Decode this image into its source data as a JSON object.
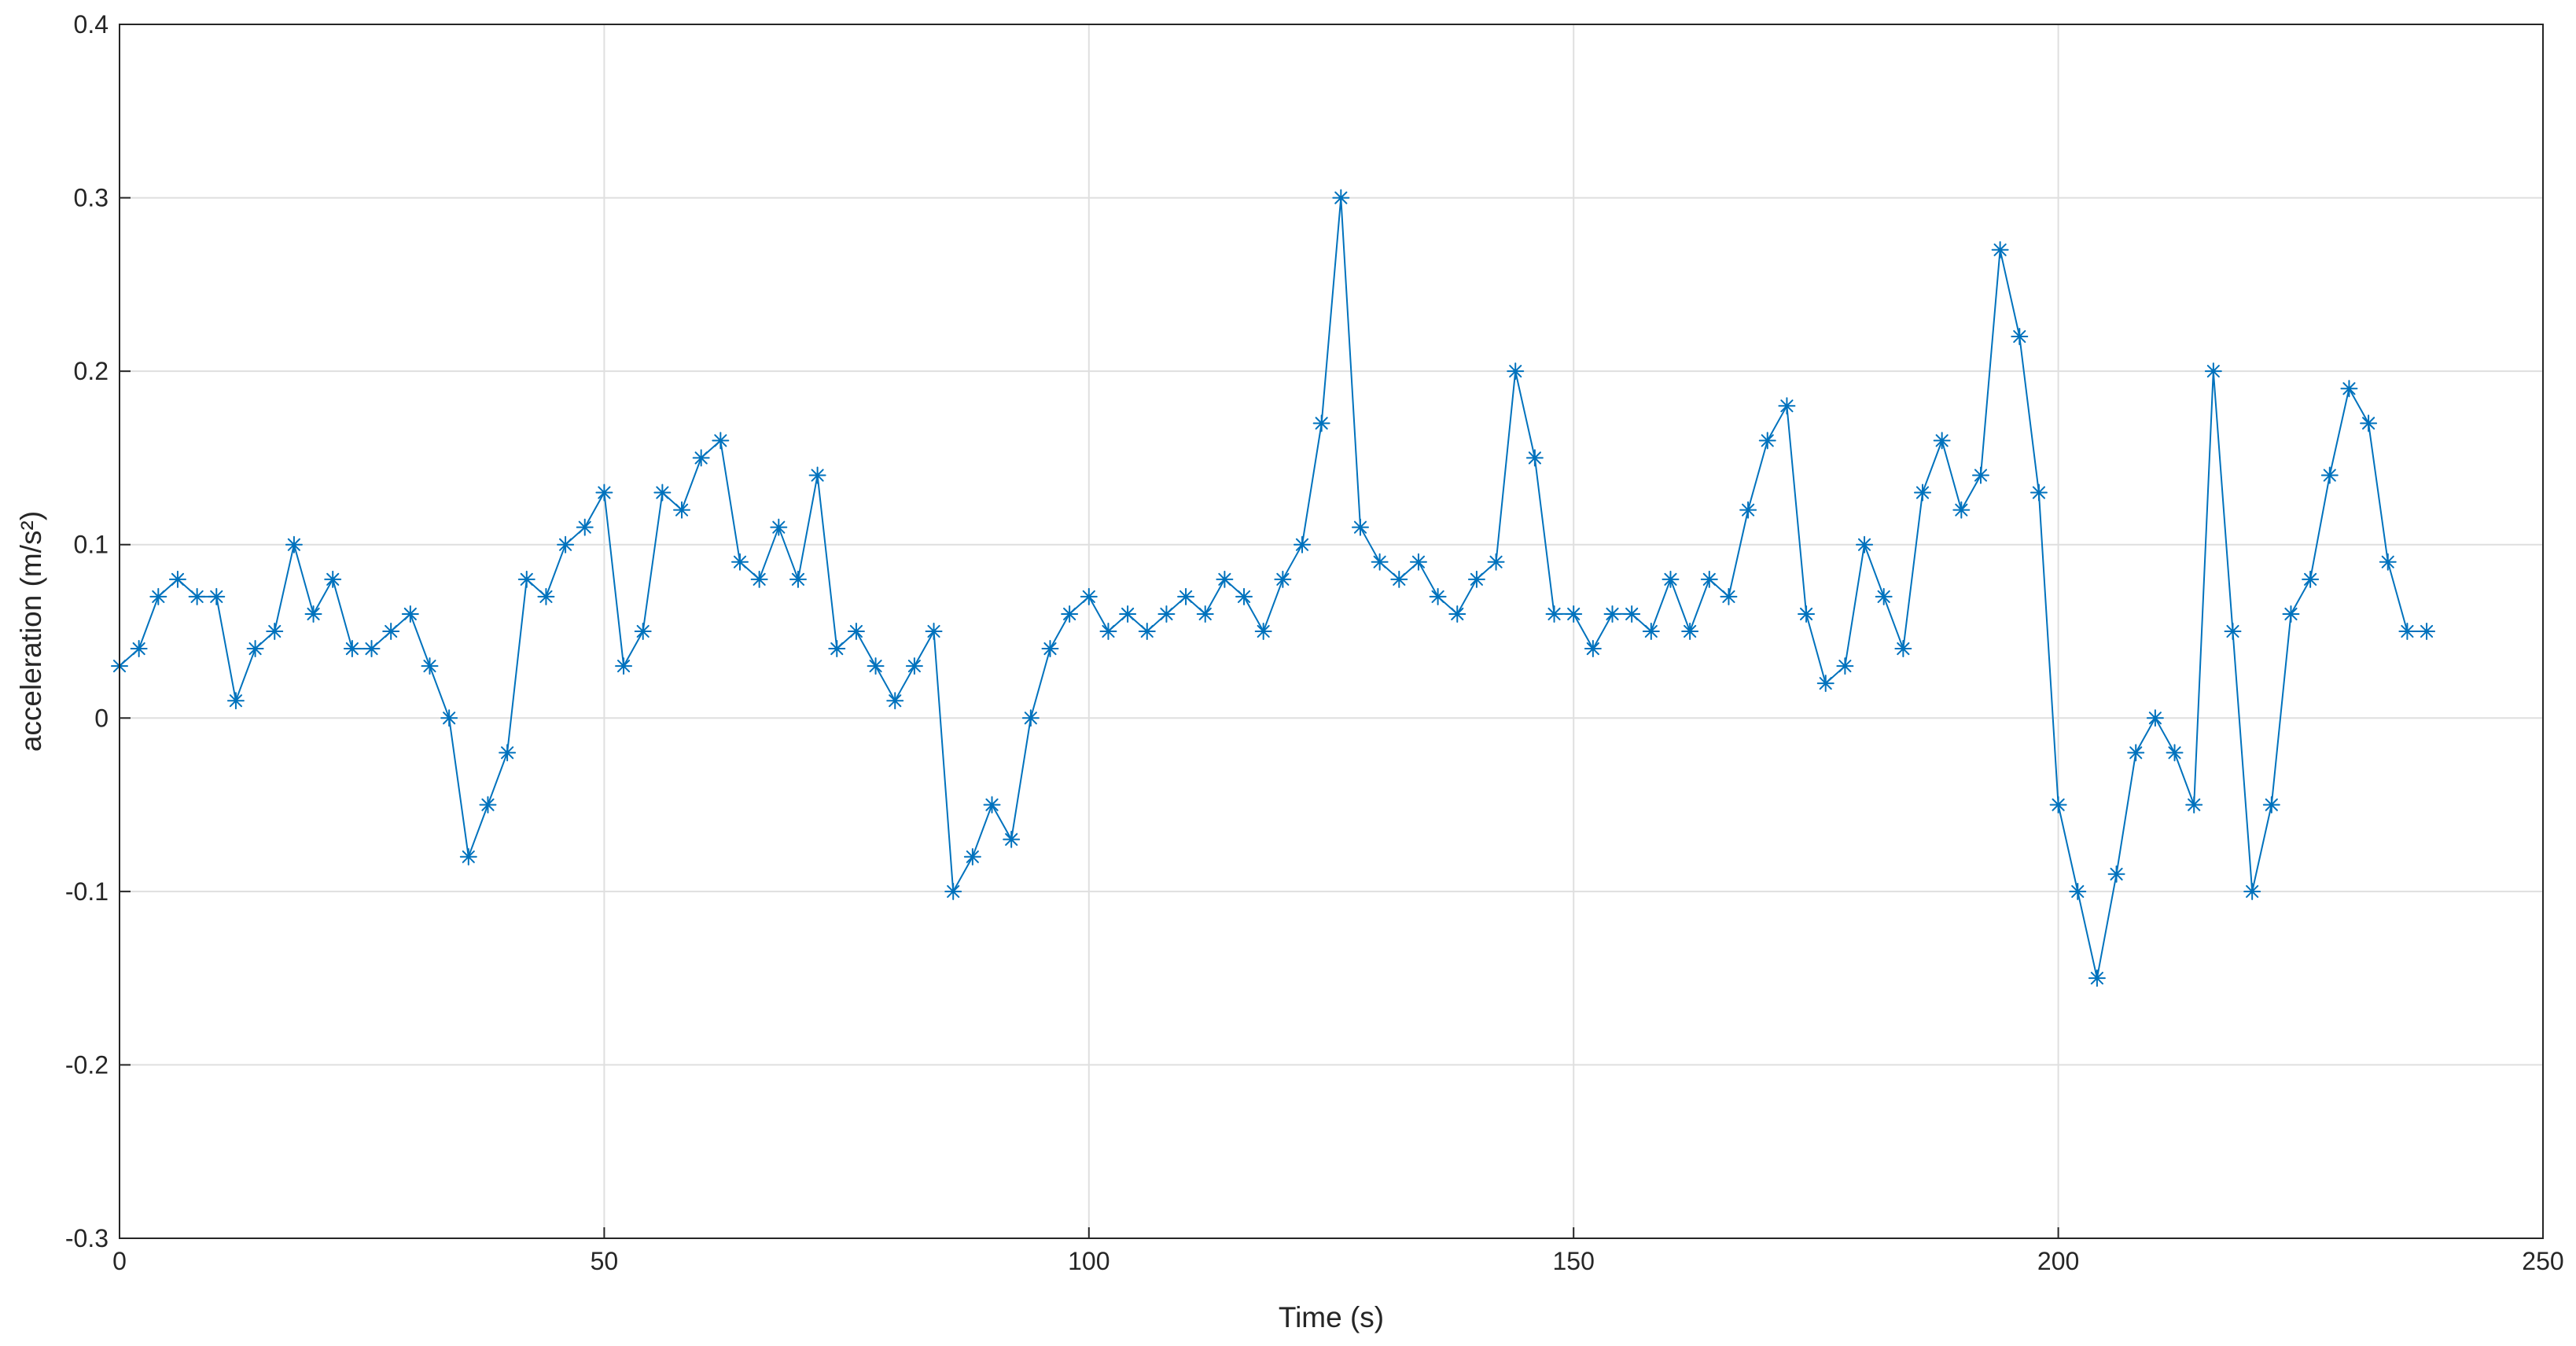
{
  "chart_data": {
    "type": "line",
    "title": "",
    "xlabel": "Time (s)",
    "ylabel": "acceleration (m/s²)",
    "xlim": [
      0,
      250
    ],
    "ylim": [
      -0.3,
      0.4
    ],
    "grid": true,
    "legend": null,
    "xticks": [
      0,
      50,
      100,
      150,
      200,
      250
    ],
    "xtick_labels": [
      "0",
      "50",
      "100",
      "150",
      "200",
      "250"
    ],
    "yticks": [
      -0.3,
      -0.2,
      -0.1,
      0,
      0.1,
      0.2,
      0.3,
      0.4
    ],
    "ytick_labels": [
      "-0.3",
      "-0.2",
      "-0.1",
      "0",
      "0.1",
      "0.2",
      "0.3",
      "0.4"
    ],
    "series": [
      {
        "color": "#0072bd",
        "marker": "asterisk",
        "x": [
          0,
          2,
          4,
          6,
          8,
          10,
          12,
          14,
          16,
          18,
          20,
          22,
          24,
          26,
          28,
          30,
          32,
          34,
          36,
          38,
          40,
          42,
          44,
          46,
          48,
          50,
          52,
          54,
          56,
          58,
          60,
          62,
          64,
          66,
          68,
          70,
          72,
          74,
          76,
          78,
          80,
          82,
          84,
          86,
          88,
          90,
          92,
          94,
          96,
          98,
          100,
          102,
          104,
          106,
          108,
          110,
          112,
          114,
          116,
          118,
          120,
          122,
          124,
          126,
          128,
          130,
          132,
          134,
          136,
          138,
          140,
          142,
          144,
          146,
          148,
          150,
          152,
          154,
          156,
          158,
          160,
          162,
          164,
          166,
          168,
          170,
          172,
          174,
          176,
          178,
          180,
          182,
          184,
          186,
          188,
          190,
          192,
          194,
          196,
          198,
          200,
          202,
          204,
          206,
          208,
          210,
          212,
          214,
          216,
          218,
          220,
          222,
          224,
          226,
          228,
          230,
          232,
          234,
          236,
          238
        ],
        "y": [
          0.03,
          0.04,
          0.07,
          0.08,
          0.07,
          0.07,
          0.01,
          0.04,
          0.05,
          0.1,
          0.06,
          0.08,
          0.04,
          0.04,
          0.05,
          0.06,
          0.03,
          0.0,
          -0.08,
          -0.05,
          -0.02,
          0.08,
          0.07,
          0.1,
          0.11,
          0.13,
          0.03,
          0.05,
          0.13,
          0.12,
          0.15,
          0.16,
          0.09,
          0.08,
          0.11,
          0.08,
          0.14,
          0.04,
          0.05,
          0.03,
          0.01,
          0.03,
          0.05,
          -0.1,
          -0.08,
          -0.05,
          -0.07,
          0.0,
          0.04,
          0.06,
          0.07,
          0.05,
          0.06,
          0.05,
          0.06,
          0.07,
          0.06,
          0.08,
          0.07,
          0.05,
          0.08,
          0.1,
          0.17,
          0.3,
          0.11,
          0.09,
          0.08,
          0.09,
          0.07,
          0.06,
          0.08,
          0.09,
          0.2,
          0.15,
          0.06,
          0.06,
          0.04,
          0.06,
          0.06,
          0.05,
          0.08,
          0.05,
          0.08,
          0.07,
          0.12,
          0.16,
          0.18,
          0.06,
          0.02,
          0.03,
          0.1,
          0.07,
          0.04,
          0.13,
          0.16,
          0.12,
          0.14,
          0.27,
          0.22,
          0.13,
          -0.05,
          -0.1,
          -0.15,
          -0.09,
          -0.02,
          0.0,
          -0.02,
          -0.05,
          0.2,
          0.05,
          -0.1,
          -0.05,
          0.06,
          0.08,
          0.14,
          0.19,
          0.17,
          0.09,
          0.05,
          0.05
        ]
      }
    ]
  }
}
